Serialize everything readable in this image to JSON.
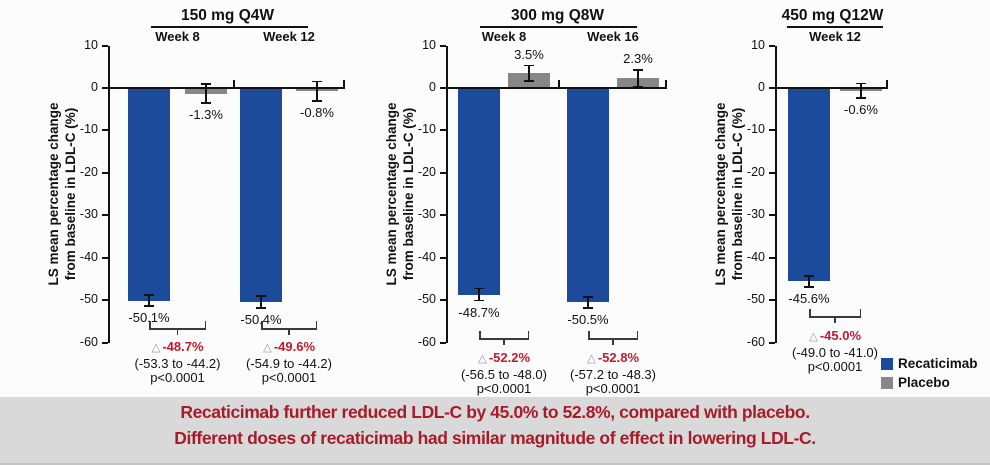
{
  "colors": {
    "recaticimab": "#1d4b9b",
    "placebo": "#878787",
    "delta_red": "#c01b2e",
    "banner_red": "#a81b28",
    "banner_bg": "#d9d9d9",
    "axis_ink": "#111111"
  },
  "delta_symbol": "△",
  "y_axis": {
    "label_line1": "LS mean percentage change",
    "label_line2": "from baseline in LDL-C (%)",
    "ticks": [
      10,
      0,
      -10,
      -20,
      -30,
      -40,
      -50,
      -60
    ]
  },
  "legend": {
    "items": [
      {
        "name": "Recaticimab",
        "color_key": "recaticimab"
      },
      {
        "name": "Placebo",
        "color_key": "placebo"
      }
    ]
  },
  "banner": {
    "line1": "Recaticimab further reduced LDL-C by 45.0% to 52.8%, compared with placebo.",
    "line2": "Different doses of recaticimab had similar magnitude of effect in lowering LDL-C."
  },
  "chart_data": [
    {
      "type": "bar",
      "title": "150 mg Q4W",
      "ylabel": "LS mean percentage change from baseline in LDL-C (%)",
      "ylim": [
        -60,
        10
      ],
      "series_names": [
        "Recaticimab",
        "Placebo"
      ],
      "groups": [
        {
          "label": "Week 8",
          "recaticimab": {
            "value": -50.1,
            "label": "-50.1%",
            "err": 1.3
          },
          "placebo": {
            "value": -1.3,
            "label": "-1.3%",
            "err": 2.2
          },
          "delta": {
            "label": "-48.7%",
            "ci": "(-53.3 to -44.2)",
            "p": "p<0.0001"
          }
        },
        {
          "label": "Week 12",
          "recaticimab": {
            "value": -50.4,
            "label": "-50.4%",
            "err": 1.4
          },
          "placebo": {
            "value": -0.8,
            "label": "-0.8%",
            "err": 2.3
          },
          "delta": {
            "label": "-49.6%",
            "ci": "(-54.9 to -44.2)",
            "p": "p<0.0001"
          }
        }
      ]
    },
    {
      "type": "bar",
      "title": "300 mg Q8W",
      "ylabel": "LS mean percentage change from baseline in LDL-C (%)",
      "ylim": [
        -60,
        10
      ],
      "series_names": [
        "Recaticimab",
        "Placebo"
      ],
      "groups": [
        {
          "label": "Week 8",
          "recaticimab": {
            "value": -48.7,
            "label": "-48.7%",
            "err": 1.4
          },
          "placebo": {
            "value": 3.5,
            "label": "3.5%",
            "err": 1.8
          },
          "delta": {
            "label": "-52.2%",
            "ci": "(-56.5 to -48.0)",
            "p": "p<0.0001"
          }
        },
        {
          "label": "Week 16",
          "recaticimab": {
            "value": -50.5,
            "label": "-50.5%",
            "err": 1.3
          },
          "placebo": {
            "value": 2.3,
            "label": "2.3%",
            "err": 1.9
          },
          "delta": {
            "label": "-52.8%",
            "ci": "(-57.2 to -48.3)",
            "p": "p<0.0001"
          }
        }
      ]
    },
    {
      "type": "bar",
      "title": "450 mg Q12W",
      "ylabel": "LS mean percentage change from baseline in LDL-C (%)",
      "ylim": [
        -60,
        10
      ],
      "series_names": [
        "Recaticimab",
        "Placebo"
      ],
      "groups": [
        {
          "label": "Week 12",
          "recaticimab": {
            "value": -45.6,
            "label": "-45.6%",
            "err": 1.3
          },
          "placebo": {
            "value": -0.6,
            "label": "-0.6%",
            "err": 1.7
          },
          "delta": {
            "label": "-45.0%",
            "ci": "(-49.0 to -41.0)",
            "p": "p<0.0001"
          }
        }
      ]
    }
  ]
}
